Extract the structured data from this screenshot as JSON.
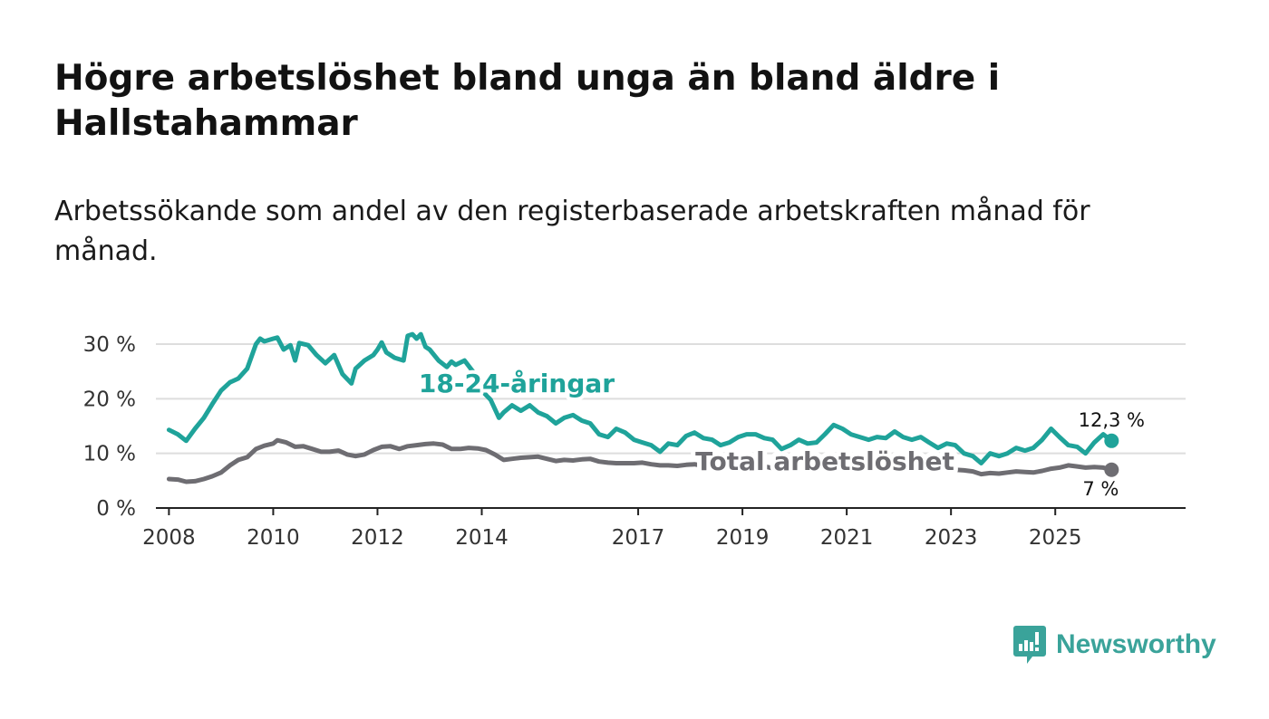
{
  "title": "Högre arbetslöshet bland unga än bland äldre i Hallstahammar",
  "subtitle": "Arbetssökande som andel av den registerbaserade arbetskraften månad för månad.",
  "brand": {
    "name": "Newsworthy",
    "icon": "newsworthy-logo-icon"
  },
  "colors": {
    "youth": "#1fa39a",
    "total": "#6e6d72",
    "grid": "#dddddd",
    "axis": "#222222",
    "brand": "#3aa39a"
  },
  "chart_data": {
    "type": "line",
    "title": "Högre arbetslöshet bland unga än bland äldre i Hallstahammar",
    "xlabel": "",
    "ylabel": "",
    "xlim": [
      2007.75,
      2027.5
    ],
    "ylim": [
      0,
      32
    ],
    "x_ticks": [
      2008,
      2010,
      2012,
      2014,
      2017,
      2019,
      2021,
      2023,
      2025
    ],
    "x_tick_labels": [
      "2008",
      "2010",
      "2012",
      "2014",
      "2017",
      "2019",
      "2021",
      "2023",
      "2025"
    ],
    "y_ticks": [
      0,
      10,
      20,
      30
    ],
    "y_tick_labels": [
      "0 %",
      "10 %",
      "20 %",
      "30 %"
    ],
    "grid": true,
    "series": [
      {
        "name": "18-24-åringar",
        "color": "#1fa39a",
        "end_label": "12,3 %",
        "points": [
          [
            2008.0,
            14.3
          ],
          [
            2008.17,
            13.5
          ],
          [
            2008.33,
            12.3
          ],
          [
            2008.5,
            14.5
          ],
          [
            2008.67,
            16.5
          ],
          [
            2008.83,
            19.0
          ],
          [
            2009.0,
            21.5
          ],
          [
            2009.17,
            23.0
          ],
          [
            2009.33,
            23.7
          ],
          [
            2009.5,
            25.5
          ],
          [
            2009.67,
            30.0
          ],
          [
            2009.75,
            31.0
          ],
          [
            2009.83,
            30.5
          ],
          [
            2010.0,
            31.0
          ],
          [
            2010.08,
            31.2
          ],
          [
            2010.2,
            29.0
          ],
          [
            2010.33,
            29.8
          ],
          [
            2010.42,
            27.0
          ],
          [
            2010.5,
            30.2
          ],
          [
            2010.67,
            29.8
          ],
          [
            2010.83,
            28.0
          ],
          [
            2011.0,
            26.5
          ],
          [
            2011.17,
            28.0
          ],
          [
            2011.33,
            24.5
          ],
          [
            2011.5,
            22.8
          ],
          [
            2011.58,
            25.5
          ],
          [
            2011.75,
            27.0
          ],
          [
            2011.92,
            28.0
          ],
          [
            2012.0,
            29.0
          ],
          [
            2012.08,
            30.3
          ],
          [
            2012.17,
            28.5
          ],
          [
            2012.33,
            27.5
          ],
          [
            2012.5,
            27.0
          ],
          [
            2012.58,
            31.5
          ],
          [
            2012.67,
            31.8
          ],
          [
            2012.75,
            31.0
          ],
          [
            2012.83,
            31.8
          ],
          [
            2012.92,
            29.5
          ],
          [
            2013.0,
            29.0
          ],
          [
            2013.17,
            27.0
          ],
          [
            2013.33,
            25.8
          ],
          [
            2013.42,
            26.8
          ],
          [
            2013.5,
            26.2
          ],
          [
            2013.67,
            27.0
          ],
          [
            2013.83,
            25.0
          ],
          [
            2014.0,
            21.5
          ],
          [
            2014.17,
            19.8
          ],
          [
            2014.33,
            16.5
          ],
          [
            2014.42,
            17.5
          ],
          [
            2014.58,
            18.8
          ],
          [
            2014.75,
            17.8
          ],
          [
            2014.92,
            18.8
          ],
          [
            2015.08,
            17.5
          ],
          [
            2015.25,
            16.8
          ],
          [
            2015.42,
            15.5
          ],
          [
            2015.58,
            16.5
          ],
          [
            2015.75,
            17.0
          ],
          [
            2015.92,
            16.0
          ],
          [
            2016.08,
            15.5
          ],
          [
            2016.25,
            13.5
          ],
          [
            2016.42,
            13.0
          ],
          [
            2016.58,
            14.5
          ],
          [
            2016.75,
            13.8
          ],
          [
            2016.92,
            12.5
          ],
          [
            2017.08,
            12.0
          ],
          [
            2017.25,
            11.5
          ],
          [
            2017.42,
            10.3
          ],
          [
            2017.58,
            11.8
          ],
          [
            2017.75,
            11.5
          ],
          [
            2017.92,
            13.2
          ],
          [
            2018.08,
            13.8
          ],
          [
            2018.25,
            12.8
          ],
          [
            2018.42,
            12.5
          ],
          [
            2018.58,
            11.5
          ],
          [
            2018.75,
            12.0
          ],
          [
            2018.92,
            13.0
          ],
          [
            2019.08,
            13.5
          ],
          [
            2019.25,
            13.5
          ],
          [
            2019.42,
            12.8
          ],
          [
            2019.58,
            12.5
          ],
          [
            2019.75,
            10.8
          ],
          [
            2019.92,
            11.5
          ],
          [
            2020.08,
            12.5
          ],
          [
            2020.25,
            11.8
          ],
          [
            2020.42,
            12.0
          ],
          [
            2020.58,
            13.5
          ],
          [
            2020.75,
            15.2
          ],
          [
            2020.92,
            14.5
          ],
          [
            2021.08,
            13.5
          ],
          [
            2021.25,
            13.0
          ],
          [
            2021.42,
            12.5
          ],
          [
            2021.58,
            13.0
          ],
          [
            2021.75,
            12.8
          ],
          [
            2021.92,
            14.0
          ],
          [
            2022.08,
            13.0
          ],
          [
            2022.25,
            12.5
          ],
          [
            2022.42,
            13.0
          ],
          [
            2022.58,
            12.0
          ],
          [
            2022.75,
            11.0
          ],
          [
            2022.92,
            11.8
          ],
          [
            2023.08,
            11.5
          ],
          [
            2023.25,
            10.0
          ],
          [
            2023.42,
            9.5
          ],
          [
            2023.58,
            8.2
          ],
          [
            2023.75,
            10.0
          ],
          [
            2023.92,
            9.5
          ],
          [
            2024.08,
            10.0
          ],
          [
            2024.25,
            11.0
          ],
          [
            2024.42,
            10.5
          ],
          [
            2024.58,
            11.0
          ],
          [
            2024.75,
            12.5
          ],
          [
            2024.92,
            14.5
          ],
          [
            2025.08,
            13.0
          ],
          [
            2025.25,
            11.5
          ],
          [
            2025.42,
            11.2
          ],
          [
            2025.58,
            10.0
          ],
          [
            2025.75,
            12.0
          ],
          [
            2025.92,
            13.5
          ],
          [
            2026.08,
            12.3
          ]
        ]
      },
      {
        "name": "Total arbetslöshet",
        "color": "#6e6d72",
        "end_label": "7 %",
        "points": [
          [
            2008.0,
            5.3
          ],
          [
            2008.17,
            5.2
          ],
          [
            2008.33,
            4.8
          ],
          [
            2008.5,
            4.9
          ],
          [
            2008.67,
            5.3
          ],
          [
            2008.83,
            5.8
          ],
          [
            2009.0,
            6.5
          ],
          [
            2009.17,
            7.8
          ],
          [
            2009.33,
            8.8
          ],
          [
            2009.5,
            9.3
          ],
          [
            2009.67,
            10.8
          ],
          [
            2009.83,
            11.4
          ],
          [
            2010.0,
            11.8
          ],
          [
            2010.08,
            12.4
          ],
          [
            2010.25,
            12.0
          ],
          [
            2010.42,
            11.2
          ],
          [
            2010.58,
            11.3
          ],
          [
            2010.75,
            10.8
          ],
          [
            2010.92,
            10.3
          ],
          [
            2011.08,
            10.3
          ],
          [
            2011.25,
            10.5
          ],
          [
            2011.42,
            9.8
          ],
          [
            2011.58,
            9.5
          ],
          [
            2011.75,
            9.8
          ],
          [
            2011.92,
            10.6
          ],
          [
            2012.08,
            11.2
          ],
          [
            2012.25,
            11.3
          ],
          [
            2012.42,
            10.8
          ],
          [
            2012.58,
            11.3
          ],
          [
            2012.75,
            11.5
          ],
          [
            2012.92,
            11.7
          ],
          [
            2013.08,
            11.8
          ],
          [
            2013.25,
            11.6
          ],
          [
            2013.42,
            10.8
          ],
          [
            2013.58,
            10.8
          ],
          [
            2013.75,
            11.0
          ],
          [
            2013.92,
            10.9
          ],
          [
            2014.08,
            10.6
          ],
          [
            2014.25,
            9.8
          ],
          [
            2014.42,
            8.8
          ],
          [
            2014.58,
            9.0
          ],
          [
            2014.75,
            9.2
          ],
          [
            2014.92,
            9.3
          ],
          [
            2015.08,
            9.4
          ],
          [
            2015.25,
            9.0
          ],
          [
            2015.42,
            8.6
          ],
          [
            2015.58,
            8.8
          ],
          [
            2015.75,
            8.7
          ],
          [
            2015.92,
            8.9
          ],
          [
            2016.08,
            9.0
          ],
          [
            2016.25,
            8.5
          ],
          [
            2016.42,
            8.3
          ],
          [
            2016.58,
            8.2
          ],
          [
            2016.75,
            8.2
          ],
          [
            2016.92,
            8.2
          ],
          [
            2017.08,
            8.3
          ],
          [
            2017.25,
            8.0
          ],
          [
            2017.42,
            7.8
          ],
          [
            2017.58,
            7.8
          ],
          [
            2017.75,
            7.7
          ],
          [
            2017.92,
            7.9
          ],
          [
            2018.08,
            8.0
          ],
          [
            2018.25,
            7.7
          ],
          [
            2018.42,
            7.6
          ],
          [
            2018.58,
            7.5
          ],
          [
            2018.75,
            7.7
          ],
          [
            2018.92,
            7.8
          ],
          [
            2019.08,
            7.9
          ],
          [
            2019.25,
            7.8
          ],
          [
            2019.42,
            7.6
          ],
          [
            2019.58,
            7.3
          ],
          [
            2019.75,
            7.4
          ],
          [
            2019.92,
            7.6
          ],
          [
            2020.08,
            7.8
          ],
          [
            2020.25,
            7.7
          ],
          [
            2020.42,
            7.6
          ],
          [
            2020.58,
            7.8
          ],
          [
            2020.75,
            8.0
          ],
          [
            2020.92,
            7.9
          ],
          [
            2021.08,
            7.8
          ],
          [
            2021.25,
            7.6
          ],
          [
            2021.42,
            7.5
          ],
          [
            2021.58,
            7.5
          ],
          [
            2021.75,
            7.6
          ],
          [
            2021.92,
            7.5
          ],
          [
            2022.08,
            7.4
          ],
          [
            2022.25,
            7.3
          ],
          [
            2022.42,
            7.3
          ],
          [
            2022.58,
            7.2
          ],
          [
            2022.75,
            7.3
          ],
          [
            2022.92,
            7.2
          ],
          [
            2023.08,
            7.0
          ],
          [
            2023.25,
            6.9
          ],
          [
            2023.42,
            6.7
          ],
          [
            2023.58,
            6.2
          ],
          [
            2023.75,
            6.4
          ],
          [
            2023.92,
            6.3
          ],
          [
            2024.08,
            6.5
          ],
          [
            2024.25,
            6.7
          ],
          [
            2024.42,
            6.6
          ],
          [
            2024.58,
            6.5
          ],
          [
            2024.75,
            6.8
          ],
          [
            2024.92,
            7.2
          ],
          [
            2025.08,
            7.4
          ],
          [
            2025.25,
            7.8
          ],
          [
            2025.42,
            7.6
          ],
          [
            2025.58,
            7.4
          ],
          [
            2025.75,
            7.5
          ],
          [
            2025.92,
            7.4
          ],
          [
            2026.08,
            7.0
          ]
        ]
      }
    ]
  }
}
